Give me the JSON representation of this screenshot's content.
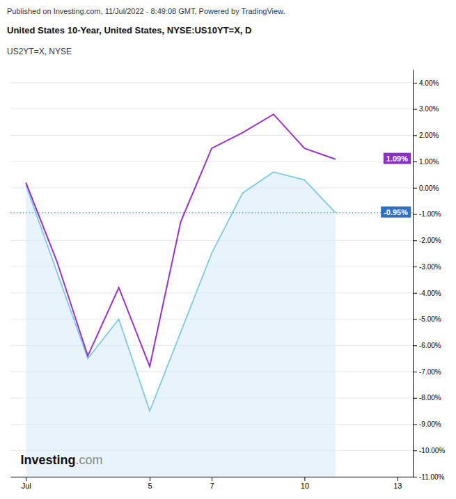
{
  "chart_data": {
    "type": "line",
    "header_note": "Published on Investing.com, 11/Jul/2022 - 8:49:08 GMT, Powered by TradingView.",
    "title": "United States 10-Year, United States, NYSE:US10YT=X, D",
    "subtitle": "US2YT=X, NYSE",
    "x": [
      1,
      2,
      3,
      4,
      5,
      6,
      7,
      8,
      9,
      10,
      11
    ],
    "xlim": [
      0.5,
      13.5
    ],
    "xticks": [
      {
        "value": 1,
        "label": "Jul"
      },
      5,
      7,
      10,
      13
    ],
    "ylim": [
      -11.0,
      4.5
    ],
    "yticks": [
      {
        "value": 4.0,
        "label": "4.00%"
      },
      {
        "value": 3.0,
        "label": "3.00%"
      },
      {
        "value": 2.0,
        "label": "2.00%"
      },
      {
        "value": 1.0,
        "label": "1.00%"
      },
      {
        "value": 0.0,
        "label": "0.00%"
      },
      {
        "value": -1.0,
        "label": "-1.00%"
      },
      {
        "value": -2.0,
        "label": "-2.00%"
      },
      {
        "value": -3.0,
        "label": "-3.00%"
      },
      {
        "value": -4.0,
        "label": "-4.00%"
      },
      {
        "value": -5.0,
        "label": "-5.00%"
      },
      {
        "value": -6.0,
        "label": "-6.00%"
      },
      {
        "value": -7.0,
        "label": "-7.00%"
      },
      {
        "value": -8.0,
        "label": "-8.00%"
      },
      {
        "value": -9.0,
        "label": "-9.00%"
      },
      {
        "value": -10.0,
        "label": "-10.00%"
      },
      {
        "value": -11.0,
        "label": "-11.00%"
      }
    ],
    "grid": true,
    "series": [
      {
        "type": "line",
        "color": "#9B30C8",
        "values": [
          0.2,
          -2.8,
          -6.4,
          -3.8,
          -6.8,
          -1.3,
          1.5,
          2.1,
          2.8,
          1.5,
          1.09
        ]
      },
      {
        "type": "area",
        "color": "#7EC8E8",
        "fill_color": "#D6EAF8",
        "values": [
          0.1,
          -3.2,
          -6.5,
          -5.0,
          -8.5,
          -5.5,
          -2.5,
          -0.2,
          0.6,
          0.3,
          -0.95
        ]
      }
    ],
    "reference_lines": [
      {
        "value": -0.95,
        "color": "#5B9BD5",
        "line_style": "dotted"
      }
    ],
    "annotations": [
      {
        "text": "1.09%",
        "value": 1.09,
        "color": "#8B2FC9"
      },
      {
        "text": "-0.95%",
        "value": -0.95,
        "color": "#2E6FBF"
      }
    ],
    "watermark": [
      {
        "text": "Investing",
        "color": "#111111"
      },
      {
        "text": ".com",
        "color": "#888888"
      }
    ]
  }
}
